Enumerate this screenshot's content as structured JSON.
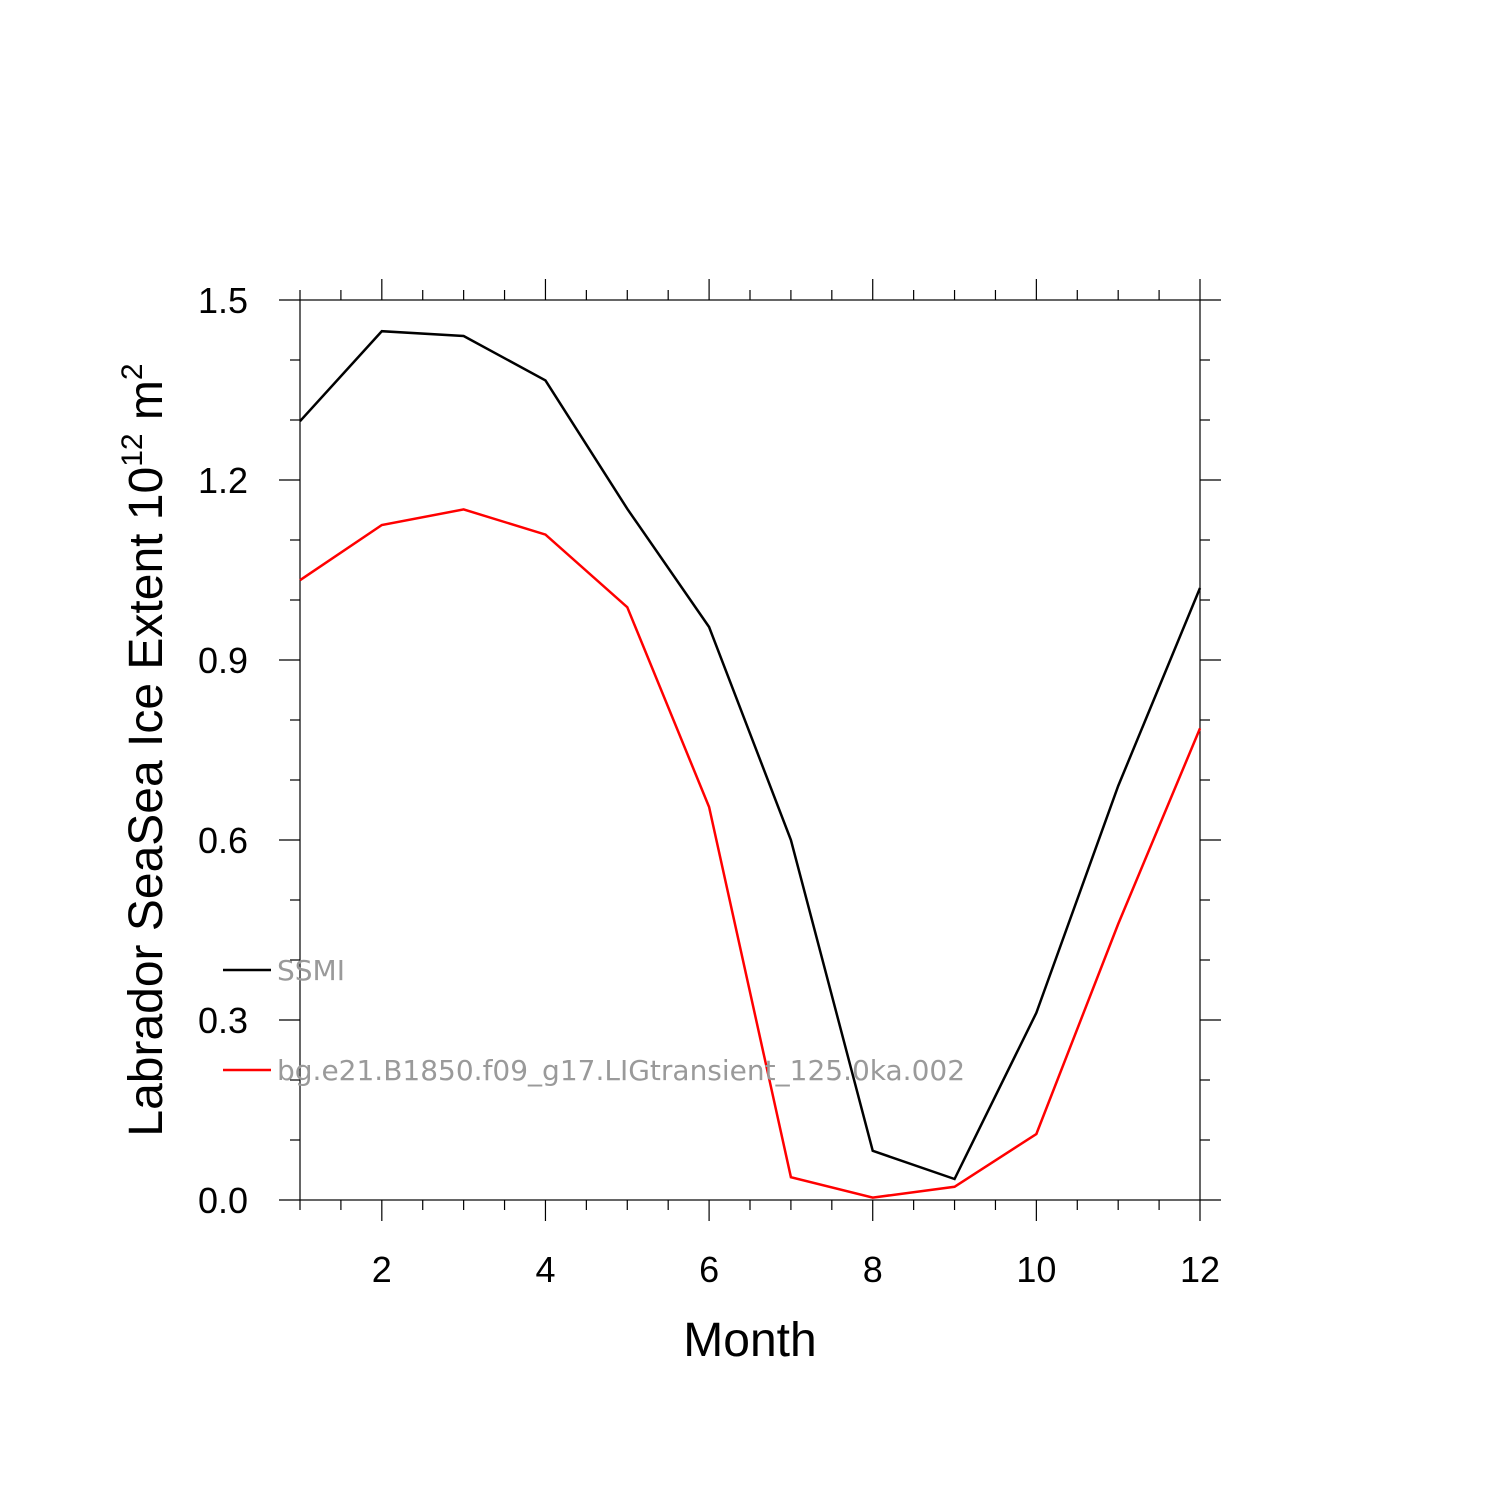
{
  "chart_data": {
    "type": "line",
    "xlabel": "Month",
    "ylabel": {
      "text": "Labrador SeaSea Ice Extent 10",
      "superscript": "12",
      "unit": " m",
      "unit_superscript": "2"
    },
    "xlim": [
      1,
      12
    ],
    "ylim": [
      0.0,
      1.5
    ],
    "xticks": [
      2,
      4,
      6,
      8,
      10,
      12
    ],
    "xtick_labels": [
      "2",
      "4",
      "6",
      "8",
      "10",
      "12"
    ],
    "yticks": [
      0.0,
      0.3,
      0.6,
      0.9,
      1.2,
      1.5
    ],
    "ytick_labels": [
      "0.0",
      "0.3",
      "0.6",
      "0.9",
      "1.2",
      "1.5"
    ],
    "grid": false,
    "legend_placement": "inside-lower-left",
    "x": [
      1,
      2,
      3,
      4,
      5,
      6,
      7,
      8,
      9,
      10,
      11,
      12
    ],
    "series": [
      {
        "name": "SSMI",
        "color": "#000000",
        "values": [
          1.298,
          1.448,
          1.44,
          1.366,
          1.152,
          0.955,
          0.6,
          0.082,
          0.035,
          0.312,
          0.69,
          1.02
        ]
      },
      {
        "name": "bg.e21.B1850.f09_g17.LIGtransient_125.0ka.002",
        "color": "#ff0000",
        "values": [
          1.033,
          1.125,
          1.151,
          1.109,
          0.988,
          0.655,
          0.038,
          0.004,
          0.022,
          0.11,
          0.46,
          0.786
        ]
      }
    ]
  }
}
